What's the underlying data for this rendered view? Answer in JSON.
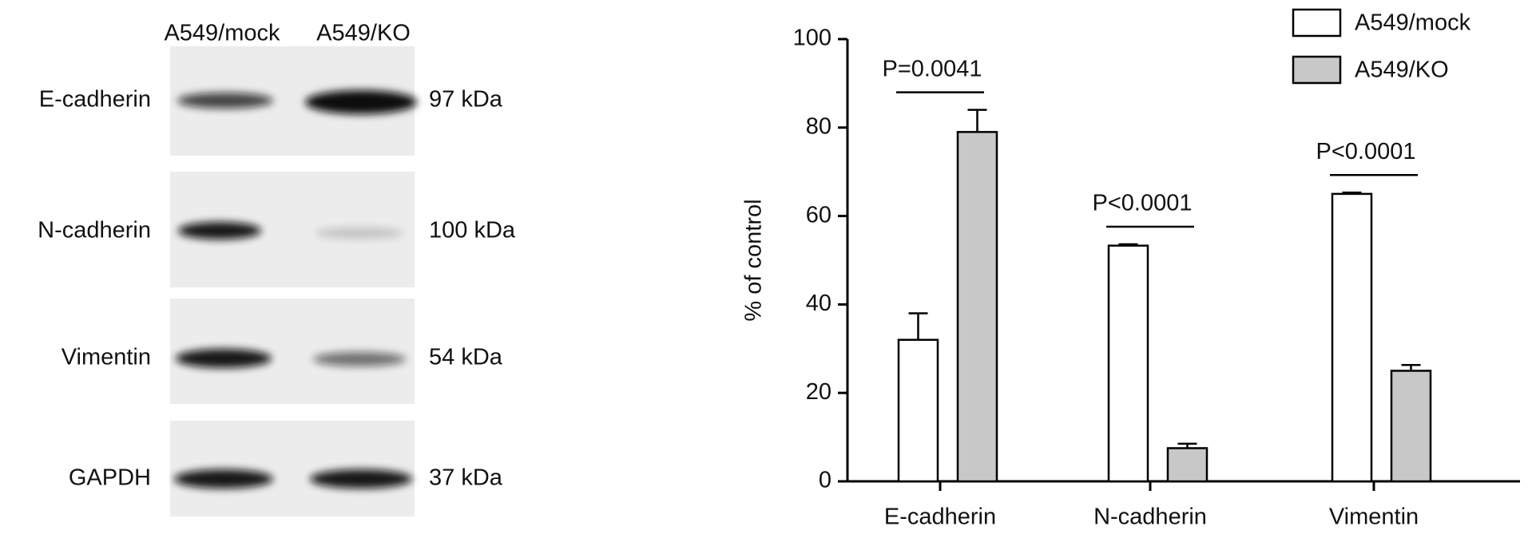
{
  "blot": {
    "lanes": [
      "A549/mock",
      "A549/KO"
    ],
    "rows": [
      {
        "protein": "E-cadherin",
        "size": "97 kDa"
      },
      {
        "protein": "N-cadherin",
        "size": "100 kDa"
      },
      {
        "protein": "Vimentin",
        "size": "54 kDa"
      },
      {
        "protein": "GAPDH",
        "size": "37 kDa"
      }
    ]
  },
  "chart_data": {
    "type": "bar",
    "y_label": "% of control",
    "categories": [
      "E-cadherin",
      "N-cadherin",
      "Vimentin"
    ],
    "series": [
      {
        "name": "A549/mock",
        "color": "#ffffff",
        "values": [
          32,
          53.3,
          65
        ],
        "errors": [
          6,
          0.3,
          0.3
        ]
      },
      {
        "name": "A549/KO",
        "color": "#c8c8c8",
        "values": [
          79,
          7.5,
          25
        ],
        "errors": [
          5,
          1,
          1.3
        ]
      }
    ],
    "annotations": [
      "P=0.0041",
      "P<0.0001",
      "P<0.0001"
    ],
    "ylim": [
      0,
      100
    ],
    "yticks": [
      0,
      20,
      40,
      60,
      80,
      100
    ],
    "grid": false,
    "legend": "top-right"
  }
}
